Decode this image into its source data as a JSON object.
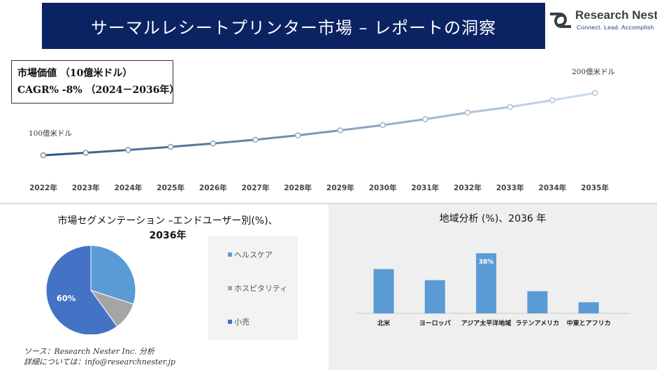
{
  "header": {
    "title": "サーマルレシートプリンター市場 – レポートの洞察",
    "logo_name": "Research Nester",
    "logo_tagline": "Connect. Lead. Accomplish",
    "logo_icon": "research-nester-logo-icon"
  },
  "info_box": {
    "market_value": "市場価値 （10億米ドル）",
    "cagr": "CAGR% -8% （2024－2036年）"
  },
  "segment": {
    "title_line1": "市場セグメンテーション –エンドユーザー別(%)、",
    "title_line2": "2036年"
  },
  "region": {
    "title": "地域分析 (%)、2036 年"
  },
  "source": {
    "line1": "ソース：Research Nester Inc. 分析",
    "line2": "詳細については：info@researchnester.jp"
  },
  "chart_data": [
    {
      "type": "line",
      "x": [
        "2022年",
        "2023年",
        "2024年",
        "2025年",
        "2026年",
        "2027年",
        "2028年",
        "2029年",
        "2030年",
        "2031年",
        "2032年",
        "2033年",
        "2034年",
        "2035年"
      ],
      "values": [
        100,
        104,
        108.5,
        113.5,
        119,
        125,
        132,
        140,
        148.5,
        158,
        168.5,
        177.5,
        188.5,
        200
      ],
      "annotations": [
        {
          "x": "2022年",
          "text": "100億米ドル"
        },
        {
          "x": "2035年",
          "text": "200億米ドル"
        }
      ],
      "colors": [
        "#2e5a84",
        "#cad9ea"
      ]
    },
    {
      "type": "pie",
      "slices": [
        {
          "label": "ヘルスケア",
          "value": 30,
          "color": "#5b9bd5"
        },
        {
          "label": "ホスピタリティ",
          "value": 10,
          "color": "#a5a5a5"
        },
        {
          "label": "小売",
          "value": 60,
          "color": "#4472c4",
          "data_label": "60%"
        }
      ]
    },
    {
      "type": "bar",
      "categories": [
        "北米",
        "ヨーロッパ",
        "アジア太平洋地域",
        "ラテンアメリカ",
        "中東とアフリカ"
      ],
      "values": [
        28,
        21,
        38,
        14,
        7
      ],
      "data_labels": [
        null,
        null,
        "38%",
        null,
        null
      ],
      "color": "#5b9bd5"
    }
  ]
}
